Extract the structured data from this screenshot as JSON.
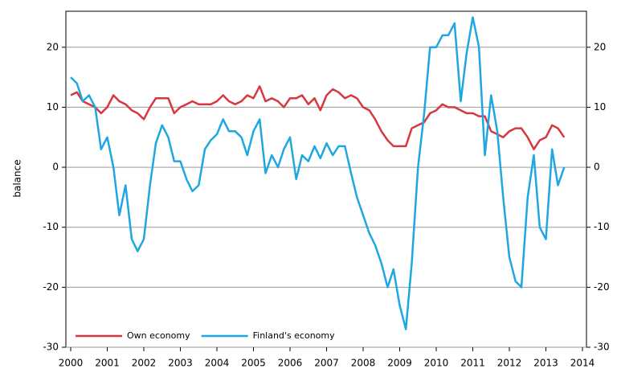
{
  "chart_data": {
    "type": "line",
    "y_label": "balance",
    "x": [
      2000,
      2000.17,
      2000.33,
      2000.5,
      2000.67,
      2000.83,
      2001,
      2001.17,
      2001.33,
      2001.5,
      2001.67,
      2001.83,
      2002,
      2002.17,
      2002.33,
      2002.5,
      2002.67,
      2002.83,
      2003,
      2003.17,
      2003.33,
      2003.5,
      2003.67,
      2003.83,
      2004,
      2004.17,
      2004.33,
      2004.5,
      2004.67,
      2004.83,
      2005,
      2005.17,
      2005.33,
      2005.5,
      2005.67,
      2005.83,
      2006,
      2006.17,
      2006.33,
      2006.5,
      2006.67,
      2006.83,
      2007,
      2007.17,
      2007.33,
      2007.5,
      2007.67,
      2007.83,
      2008,
      2008.17,
      2008.33,
      2008.5,
      2008.67,
      2008.83,
      2009,
      2009.17,
      2009.33,
      2009.5,
      2009.67,
      2009.83,
      2010,
      2010.17,
      2010.33,
      2010.5,
      2010.67,
      2010.83,
      2011,
      2011.17,
      2011.33,
      2011.5,
      2011.67,
      2011.83,
      2012,
      2012.17,
      2012.33,
      2012.5,
      2012.67,
      2012.83,
      2013,
      2013.17,
      2013.33,
      2013.5
    ],
    "series": [
      {
        "name": "Own economy",
        "color": "#d9373f",
        "values": [
          12,
          12.5,
          11,
          10.5,
          10,
          9,
          10,
          12,
          11,
          10.5,
          9.5,
          9,
          8,
          10,
          11.5,
          11.5,
          11.5,
          9,
          10,
          10.5,
          11,
          10.5,
          10.5,
          10.5,
          11,
          12,
          11,
          10.5,
          11,
          12,
          11.5,
          13.5,
          11,
          11.5,
          11,
          10,
          11.5,
          11.5,
          12,
          10.5,
          11.5,
          9.5,
          12,
          13,
          12.5,
          11.5,
          12,
          11.5,
          10,
          9.5,
          8,
          6,
          4.5,
          3.5,
          3.5,
          3.5,
          6.5,
          7,
          7.5,
          9,
          9.5,
          10.5,
          10,
          10,
          9.5,
          9,
          9,
          8.5,
          8.5,
          6,
          5.5,
          5,
          6,
          6.5,
          6.5,
          5,
          3,
          4.5,
          5,
          7,
          6.5,
          5
        ]
      },
      {
        "name": "Finland's economy",
        "color": "#1ea7e1",
        "values": [
          15,
          14,
          11,
          12,
          10,
          3,
          5,
          0,
          -8,
          -3,
          -12,
          -14,
          -12,
          -3,
          4,
          7,
          5,
          1,
          1,
          -2,
          -4,
          -3,
          3,
          4.5,
          5.5,
          8,
          6,
          6,
          5,
          2,
          6,
          8,
          -1,
          2,
          0,
          3,
          5,
          -2,
          2,
          1,
          3.5,
          1.5,
          4,
          2,
          3.5,
          3.5,
          -1,
          -5,
          -8,
          -11,
          -13,
          -16,
          -20,
          -17,
          -23,
          -27,
          -16,
          0,
          9,
          20,
          20,
          22,
          22,
          24,
          11,
          19,
          25,
          20,
          2,
          12,
          6,
          -5,
          -15,
          -19,
          -20,
          -5,
          2,
          -10,
          -12,
          3,
          -3,
          0
        ]
      }
    ],
    "xlim": [
      2000,
      2014
    ],
    "xticks": [
      2000,
      2001,
      2002,
      2003,
      2004,
      2005,
      2006,
      2007,
      2008,
      2009,
      2010,
      2011,
      2012,
      2013,
      2014
    ],
    "ylim": [
      -30,
      26
    ],
    "yticks": [
      -30,
      -20,
      -10,
      0,
      10,
      20
    ],
    "grid": true,
    "legend": "lower left"
  }
}
